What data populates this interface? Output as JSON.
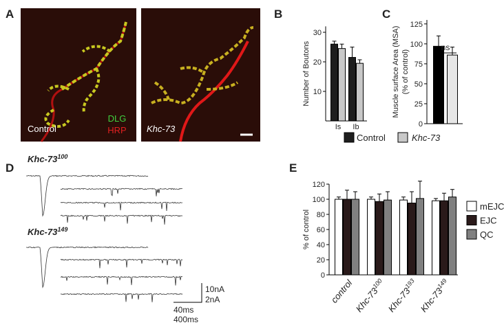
{
  "panel_labels": [
    "A",
    "B",
    "C",
    "D",
    "E"
  ],
  "image_labels": {
    "control": "Control",
    "dlg": "DLG",
    "hrp": "HRP",
    "mutant": "Khc-73"
  },
  "traces": {
    "genotypes": [
      {
        "name": "Khc-73",
        "sup": "100"
      },
      {
        "name": "Khc-73",
        "sup": "149"
      }
    ],
    "scale_labels": [
      "10nA",
      "2nA",
      "40ms",
      "400ms"
    ]
  },
  "chart_data": [
    {
      "type": "bar",
      "ylabel": "Number of Boutons",
      "categories": [
        "Is",
        "Ib"
      ],
      "series": [
        {
          "name": "Control",
          "color": "#1e1e1e",
          "values": [
            26,
            21.5
          ],
          "errors": [
            1,
            3.5
          ]
        },
        {
          "name": "Khc-73",
          "color": "#c8c8c8",
          "values": [
            24.5,
            19.5
          ],
          "errors": [
            1.5,
            1.2
          ]
        }
      ],
      "ylim": [
        0,
        32
      ],
      "yticks": [
        10,
        20,
        30
      ]
    },
    {
      "type": "bar",
      "ylabel": [
        "Muscle surface Area (MSA)",
        "(% of control)"
      ],
      "annotation": "ns",
      "categories": [
        null,
        null
      ],
      "values": [
        97,
        86
      ],
      "errors": [
        13,
        10
      ],
      "colors": [
        "#000000",
        "#e6e6e6"
      ],
      "ylim": [
        0,
        130
      ],
      "yticks": [
        0,
        25,
        50,
        75,
        100,
        125
      ]
    },
    {
      "type": "bar",
      "ylabel": "% of control",
      "categories": [
        "control",
        "Khc-73",
        "Khc-73",
        "Khc-73"
      ],
      "category_superscripts": [
        null,
        "100",
        "193",
        "149"
      ],
      "series": [
        {
          "name": "mEJC",
          "color": "#ffffff",
          "values": [
            100,
            100,
            99,
            98
          ],
          "errors": [
            3,
            3,
            4,
            3
          ]
        },
        {
          "name": "EJC",
          "color": "#2a1a1a",
          "values": [
            100,
            97,
            95,
            98
          ],
          "errors": [
            12,
            10,
            15,
            10
          ]
        },
        {
          "name": "QC",
          "color": "#808080",
          "values": [
            100,
            99,
            101,
            103
          ],
          "errors": [
            10,
            11,
            23,
            10
          ]
        }
      ],
      "ylim": [
        0,
        120
      ],
      "yticks": [
        0,
        20,
        40,
        60,
        80,
        100,
        120
      ]
    }
  ]
}
